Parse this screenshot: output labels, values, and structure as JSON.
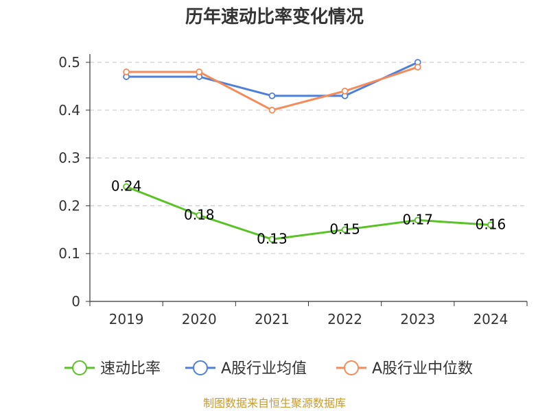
{
  "chart_data": {
    "type": "line",
    "title": "历年速动比率变化情况",
    "categories": [
      "2019",
      "2020",
      "2021",
      "2022",
      "2023",
      "2024"
    ],
    "ylim": [
      0,
      0.5
    ],
    "yticks": [
      "0",
      "0.1",
      "0.2",
      "0.3",
      "0.4",
      "0.5"
    ],
    "grid": true,
    "legend_position": "bottom",
    "series": [
      {
        "name": "速动比率",
        "color": "#5ac127",
        "values": [
          0.24,
          0.18,
          0.13,
          0.15,
          0.17,
          0.16
        ],
        "labels": [
          "0.24",
          "0.18",
          "0.13",
          "0.15",
          "0.17",
          "0.16"
        ],
        "show_labels": true
      },
      {
        "name": "A股行业均值",
        "color": "#4f7fd9",
        "values": [
          0.47,
          0.47,
          0.43,
          0.43,
          0.5,
          null
        ],
        "show_labels": false
      },
      {
        "name": "A股行业中位数",
        "color": "#f58b5a",
        "values": [
          0.48,
          0.48,
          0.4,
          0.44,
          0.49,
          null
        ],
        "show_labels": false
      }
    ]
  },
  "footer": {
    "source": "制图数据来自恒生聚源数据库"
  }
}
